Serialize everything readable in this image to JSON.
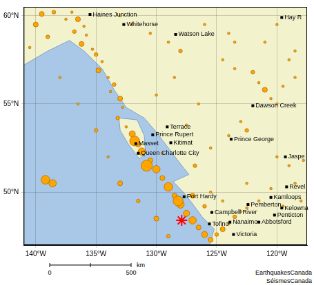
{
  "chart_data": {
    "type": "scatter",
    "xlim": [
      -141,
      -117.5
    ],
    "ylim": [
      47,
      60.5
    ],
    "xticks": [
      {
        "value": -140,
        "label": "140°W"
      },
      {
        "value": -135,
        "label": "135°W"
      },
      {
        "value": -130,
        "label": "130°W"
      },
      {
        "value": -125,
        "label": "125°W"
      },
      {
        "value": -120,
        "label": "120°W"
      }
    ],
    "yticks": [
      {
        "value": 50,
        "label": "50°N"
      },
      {
        "value": 55,
        "label": "55°N"
      },
      {
        "value": 60,
        "label": "60°N"
      }
    ],
    "grid": true,
    "series": [
      {
        "color": "#ffa500",
        "marker": "circle",
        "x": [
          -139.5,
          -138.5,
          -137.5,
          -137.0,
          -136.5,
          -136.0,
          -136.8,
          -135.8,
          -136.2,
          -135.3,
          -135.0,
          -134.5,
          -134.8,
          -134.0,
          -133.5,
          -133.8,
          -133.0,
          -132.8,
          -133.2,
          -132.5,
          -132.0,
          -131.5,
          -131.2,
          -130.5,
          -130.0,
          -129.5,
          -129.0,
          -128.5,
          -128.0,
          -127.5,
          -127.0,
          -126.5,
          -126.0,
          -125.5,
          -125.0,
          -124.5,
          -124.0,
          -123.5,
          -123.0,
          -122.5,
          -124.5,
          -125.5,
          -133.0,
          -132.0,
          -130.5,
          -129.0,
          -128.0,
          -126.0,
          -124.0,
          -123.5,
          -124.5,
          -123.5,
          -122.0,
          -121.5,
          -121.0,
          -120.5,
          -120.0,
          -119.5,
          -118.5,
          -119.0,
          -121.0,
          -120.0,
          -118.5,
          -123.0,
          -122.5,
          -124.0,
          -125.5,
          -120.0,
          -119.0,
          -118.5,
          -120.5,
          -121.5,
          -119.5,
          -118.0,
          -117.8,
          -122.5,
          -139.2,
          -138.6,
          -138.0,
          -136.5,
          -135.0,
          -134.0,
          -133.0,
          -131.5,
          -130.0,
          -129.0,
          -131.8,
          -130.8,
          -128.2,
          -140.0,
          -139.0,
          -140.5,
          -127.0,
          -126.0,
          -129.5,
          -130.0,
          -128.5,
          -126.5,
          -127.5,
          -126.8
        ],
        "y": [
          60.1,
          60.2,
          59.8,
          60.2,
          59.8,
          59.4,
          59.1,
          58.9,
          58.4,
          58.1,
          57.8,
          57.4,
          56.9,
          56.5,
          56.1,
          55.7,
          55.3,
          54.8,
          54.2,
          53.7,
          53.3,
          52.7,
          52.3,
          51.8,
          51.3,
          50.8,
          50.3,
          49.8,
          49.3,
          48.8,
          48.4,
          48.0,
          47.6,
          47.3,
          47.6,
          47.9,
          48.2,
          48.6,
          48.9,
          49.1,
          49.5,
          50.0,
          60.0,
          59.5,
          59.0,
          58.5,
          58.0,
          59.5,
          59.0,
          58.5,
          57.5,
          57.0,
          56.8,
          56.2,
          55.8,
          55.3,
          55.0,
          56.0,
          56.5,
          57.5,
          58.5,
          59.5,
          58.0,
          54.0,
          53.5,
          53.2,
          52.5,
          52.0,
          51.5,
          50.5,
          50.2,
          49.5,
          49.2,
          49.5,
          51.8,
          50.5,
          50.7,
          50.5,
          56.5,
          55.0,
          53.5,
          52.0,
          50.5,
          49.5,
          48.5,
          47.5,
          52.9,
          51.5,
          49.5,
          59.5,
          58.8,
          58.2,
          49.8,
          49.2,
          52.2,
          55.5,
          56.5,
          55.0,
          53.8,
          51.5
        ],
        "size": [
          4,
          3.5,
          3,
          3,
          4,
          3,
          3.5,
          3,
          4,
          3,
          3.5,
          3,
          4,
          3,
          3.5,
          3,
          4,
          3,
          3.5,
          3,
          4.5,
          4,
          5,
          4,
          5,
          4,
          5.5,
          4,
          5,
          4.5,
          5,
          4,
          4.5,
          4,
          3.5,
          4,
          3,
          3.5,
          3,
          3,
          3,
          3,
          3,
          3,
          3,
          3,
          3.5,
          3,
          3,
          3,
          3,
          3,
          3.5,
          3,
          4,
          3,
          3,
          3,
          3,
          3,
          3,
          3,
          3,
          3,
          3.5,
          3,
          3,
          3,
          3,
          3,
          3,
          3,
          3,
          3,
          3,
          3,
          5.5,
          5,
          3,
          3,
          3.5,
          3,
          4,
          3.5,
          4,
          3.5,
          6,
          6.5,
          6,
          4,
          3.5,
          3,
          4,
          3.5,
          3,
          3,
          3,
          3,
          3,
          3.5
        ]
      },
      {
        "color": "#ff0000",
        "marker": "star",
        "x": [
          -127.9
        ],
        "y": [
          48.4
        ]
      }
    ],
    "places": [
      {
        "label": "Haines Junction",
        "x": -135.5,
        "y": 60.07
      },
      {
        "label": "Whitehorse",
        "x": -132.7,
        "y": 59.5
      },
      {
        "label": "Watson Lake",
        "x": -128.4,
        "y": 58.94
      },
      {
        "label": "Hay R",
        "x": -119.6,
        "y": 59.9
      },
      {
        "label": "Dawson Creek",
        "x": -122.0,
        "y": 54.9
      },
      {
        "label": "Terrace",
        "x": -129.1,
        "y": 53.7
      },
      {
        "label": "Prince Rupert",
        "x": -130.3,
        "y": 53.25
      },
      {
        "label": "Kitimat",
        "x": -128.8,
        "y": 52.8
      },
      {
        "label": "Masset",
        "x": -131.7,
        "y": 52.75
      },
      {
        "label": "Queen Charlotte City",
        "x": -131.5,
        "y": 52.2
      },
      {
        "label": "Prince George",
        "x": -123.8,
        "y": 53.0
      },
      {
        "label": "Jaspe",
        "x": -119.3,
        "y": 52.0
      },
      {
        "label": "Revel",
        "x": -119.2,
        "y": 50.3
      },
      {
        "label": "Kamloops",
        "x": -120.5,
        "y": 49.7
      },
      {
        "label": "Pemberton",
        "x": -122.4,
        "y": 49.3
      },
      {
        "label": "Kelowna",
        "x": -119.6,
        "y": 49.1
      },
      {
        "label": "Port Hardy",
        "x": -127.7,
        "y": 49.74
      },
      {
        "label": "Campbell River",
        "x": -125.4,
        "y": 48.85
      },
      {
        "label": "Penticton",
        "x": -120.2,
        "y": 48.7
      },
      {
        "label": "Tofino",
        "x": -125.6,
        "y": 48.2
      },
      {
        "label": "Nanaimo",
        "x": -123.9,
        "y": 48.3
      },
      {
        "label": "Abbotsford",
        "x": -121.5,
        "y": 48.3
      },
      {
        "label": "Victoria",
        "x": -123.6,
        "y": 47.6
      }
    ],
    "land": [
      [
        [
          -141,
          60.5
        ],
        [
          -141,
          57.2
        ],
        [
          -139,
          58.0
        ],
        [
          -137.2,
          58.6
        ],
        [
          -136,
          58.0
        ],
        [
          -134.5,
          57.0
        ],
        [
          -133.5,
          55.8
        ],
        [
          -132.5,
          54.8
        ],
        [
          -131,
          54.2
        ],
        [
          -130,
          53.4
        ],
        [
          -129,
          52.5
        ],
        [
          -128,
          51.6
        ],
        [
          -127.3,
          51.0
        ],
        [
          -128.6,
          50.6
        ],
        [
          -127.5,
          49.8
        ],
        [
          -126.2,
          48.6
        ],
        [
          -125.2,
          47.9
        ],
        [
          -125.6,
          47
        ],
        [
          -117.5,
          47
        ],
        [
          -117.5,
          60.5
        ]
      ],
      [
        [
          -133.1,
          54.2
        ],
        [
          -131.6,
          54.1
        ],
        [
          -131.0,
          53.2
        ],
        [
          -130.9,
          52.2
        ],
        [
          -131.4,
          51.9
        ],
        [
          -132.3,
          52.7
        ],
        [
          -133.0,
          53.5
        ]
      ]
    ],
    "scale_bar": {
      "ticks": [
        0,
        500
      ],
      "unit": "km"
    },
    "credits": [
      "EarthquakesCanada",
      "SéismesCanada"
    ]
  }
}
